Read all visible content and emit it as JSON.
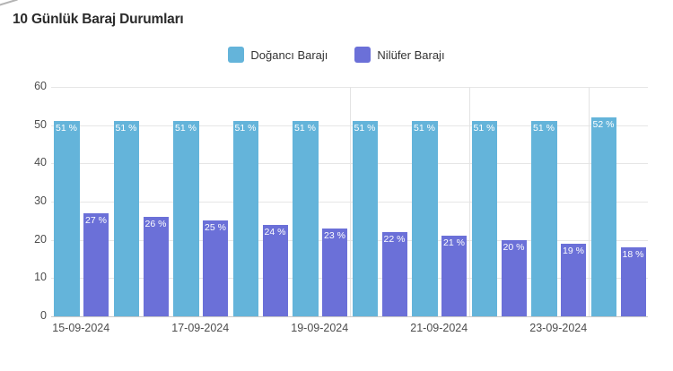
{
  "title": "10 Günlük Baraj Durumları",
  "legend": [
    {
      "label": "Doğancı Barajı",
      "color": "#64b4da"
    },
    {
      "label": "Nilüfer Barajı",
      "color": "#6b70d8"
    }
  ],
  "chart_data": {
    "type": "bar",
    "title": "10 Günlük Baraj Durumları",
    "categories": [
      "15-09-2024",
      "",
      "17-09-2024",
      "",
      "19-09-2024",
      "",
      "21-09-2024",
      "",
      "23-09-2024",
      ""
    ],
    "series": [
      {
        "name": "Doğancı Barajı",
        "color": "#64b4da",
        "values": [
          51,
          51,
          51,
          51,
          51,
          51,
          51,
          51,
          51,
          52
        ]
      },
      {
        "name": "Nilüfer Barajı",
        "color": "#6b70d8",
        "values": [
          27,
          26,
          25,
          24,
          23,
          22,
          21,
          20,
          19,
          18
        ]
      }
    ],
    "value_suffix": " %",
    "ylim": [
      0,
      60
    ],
    "yticks": [
      0,
      10,
      20,
      30,
      40,
      50,
      60
    ],
    "grid": true,
    "vgrid_day_boundaries": [
      5,
      7,
      9
    ],
    "legend_position": "top-center",
    "colors": {
      "grid": "#e6e6e6",
      "axis_line": "#c9c9c9",
      "tick_text": "#4d4d4d",
      "title_text": "#2b2b2b",
      "bar_label_text": "#ffffff"
    }
  }
}
